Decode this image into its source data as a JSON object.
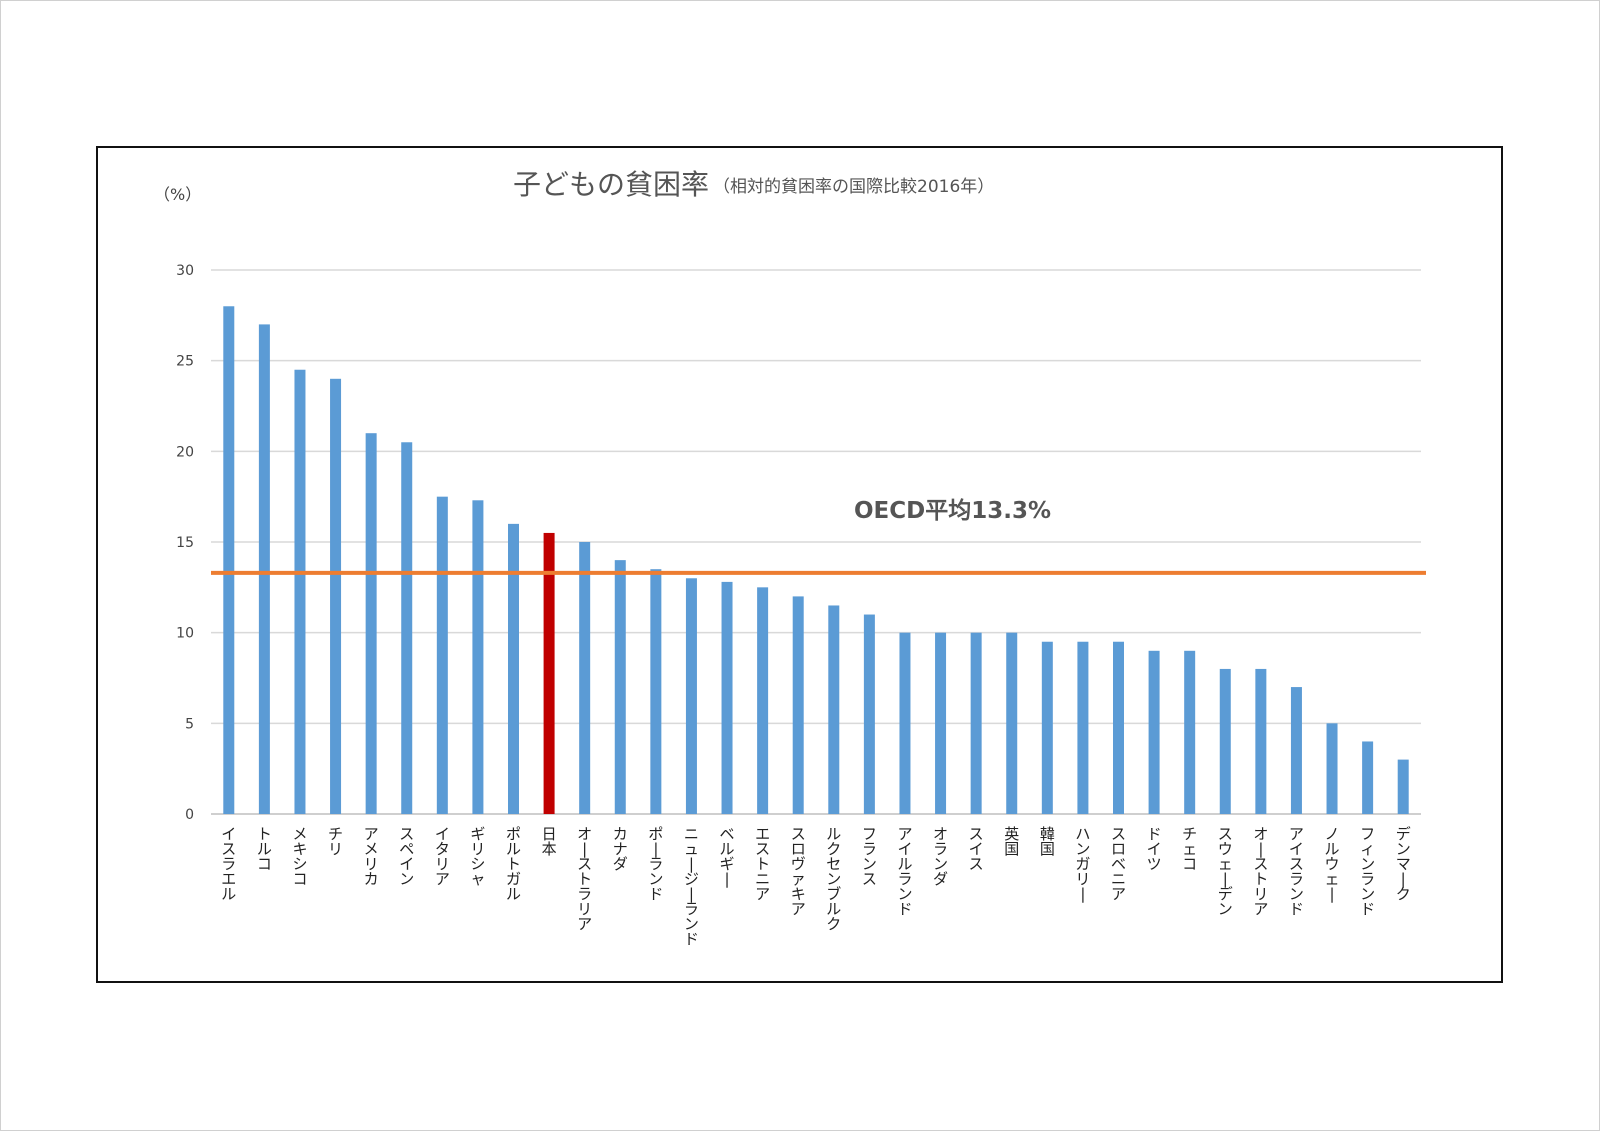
{
  "chart_data": {
    "type": "bar",
    "title": "子どもの貧困率",
    "subtitle": "（相対的貧困率の国際比較2016年）",
    "ylabel": "（%）",
    "ylim": [
      0,
      30
    ],
    "yticks": [
      0,
      5,
      10,
      15,
      20,
      25,
      30
    ],
    "grid": true,
    "categories": [
      "イスラエル",
      "トルコ",
      "メキシコ",
      "チリ",
      "アメリカ",
      "スペイン",
      "イタリア",
      "ギリシャ",
      "ポルトガル",
      "日本",
      "オーストラリア",
      "カナダ",
      "ポーランド",
      "ニュージーランド",
      "ベルギー",
      "エストニア",
      "スロヴァキア",
      "ルクセンブルク",
      "フランス",
      "アイルランド",
      "オランダ",
      "スイス",
      "英国",
      "韓国",
      "ハンガリー",
      "スロベニア",
      "ドイツ",
      "チェコ",
      "スウェーデン",
      "オーストリア",
      "アイスランド",
      "ノルウェー",
      "フィンランド",
      "デンマーク"
    ],
    "values": [
      28,
      27,
      24.5,
      24,
      21,
      20.5,
      17.5,
      17.3,
      16,
      15.5,
      15,
      14,
      13.5,
      13,
      12.8,
      12.5,
      12,
      11.5,
      11,
      10,
      10,
      10,
      10,
      9.5,
      9.5,
      9.5,
      9,
      9,
      8,
      8,
      7,
      5,
      4,
      3
    ],
    "highlight_category": "日本",
    "bar_color": "#5b9bd5",
    "highlight_color": "#c00000",
    "reference_line": {
      "value": 13.3,
      "label": "OECD平均13.3%",
      "color": "#ed7d31"
    }
  }
}
